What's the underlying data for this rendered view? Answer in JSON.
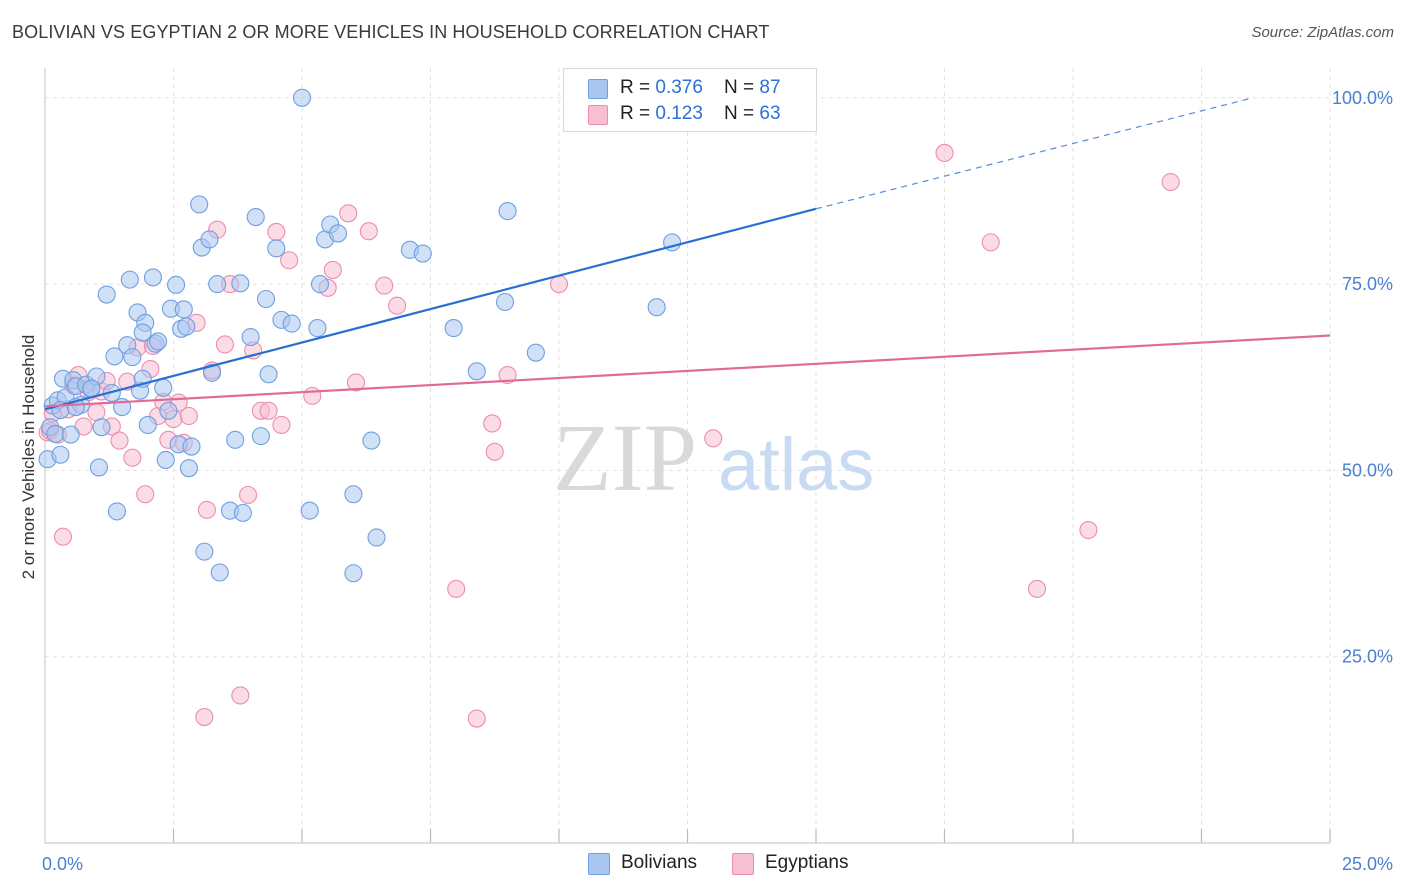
{
  "title": "BOLIVIAN VS EGYPTIAN 2 OR MORE VEHICLES IN HOUSEHOLD CORRELATION CHART",
  "source": "Source: ZipAtlas.com",
  "watermark": {
    "zip": "ZIP",
    "atlas": "atlas"
  },
  "colors": {
    "blue_fill": "#a9c6f0",
    "blue_stroke": "#6f9fe0",
    "blue_line": "#2b6fd1",
    "pink_fill": "#f7bfd2",
    "pink_stroke": "#ec8db0",
    "pink_line": "#e06a98",
    "grid": "#e2e2e2",
    "tick_text": "#4a7fd1"
  },
  "legend": {
    "rows": [
      {
        "r_label": "R = ",
        "r_value": "0.376",
        "n_label": "N = ",
        "n_value": "87"
      },
      {
        "r_label": "R = ",
        "r_value": "0.123",
        "n_label": "N = ",
        "n_value": "63"
      }
    ]
  },
  "bottom_legend": [
    {
      "label": "Bolivians"
    },
    {
      "label": "Egyptians"
    }
  ],
  "chart_data": {
    "type": "scatter",
    "title": "BOLIVIAN VS EGYPTIAN 2 OR MORE VEHICLES IN HOUSEHOLD CORRELATION CHART",
    "xlabel": "",
    "ylabel": "2 or more Vehicles in Household",
    "xlim": [
      0,
      25
    ],
    "ylim": [
      0,
      104
    ],
    "x_tick_labels": [
      "0.0%",
      "25.0%"
    ],
    "y_ticks": [
      {
        "value": 25,
        "label": "25.0%"
      },
      {
        "value": 50,
        "label": "50.0%"
      },
      {
        "value": 75,
        "label": "75.0%"
      },
      {
        "value": 100,
        "label": "100.0%"
      }
    ],
    "series": [
      {
        "name": "Bolivians",
        "R": 0.376,
        "N": 87,
        "trend": {
          "x0": 0,
          "y0": 58.2,
          "x1": 15,
          "y1": 85.1,
          "dash_to_x": 23.5,
          "dash_to_y": 100.0
        },
        "points": [
          [
            0.05,
            51.5
          ],
          [
            0.1,
            55.8
          ],
          [
            0.15,
            58.7
          ],
          [
            0.2,
            54.9
          ],
          [
            0.25,
            59.4
          ],
          [
            0.3,
            52.1
          ],
          [
            0.35,
            62.3
          ],
          [
            0.4,
            59.8
          ],
          [
            0.5,
            54.8
          ],
          [
            0.55,
            62.1
          ],
          [
            0.6,
            61.3
          ],
          [
            0.7,
            58.8
          ],
          [
            0.8,
            61.5
          ],
          [
            0.9,
            60.9
          ],
          [
            1.0,
            62.6
          ],
          [
            1.05,
            50.4
          ],
          [
            1.1,
            55.8
          ],
          [
            1.2,
            73.6
          ],
          [
            1.3,
            60.4
          ],
          [
            1.35,
            65.3
          ],
          [
            1.4,
            44.5
          ],
          [
            1.5,
            58.5
          ],
          [
            1.6,
            66.8
          ],
          [
            1.65,
            75.6
          ],
          [
            1.7,
            65.2
          ],
          [
            1.8,
            71.2
          ],
          [
            1.85,
            60.7
          ],
          [
            1.9,
            62.3
          ],
          [
            1.95,
            69.8
          ],
          [
            2.0,
            56.1
          ],
          [
            2.1,
            75.9
          ],
          [
            2.15,
            67.0
          ],
          [
            2.2,
            67.3
          ],
          [
            2.35,
            51.4
          ],
          [
            2.4,
            58.0
          ],
          [
            2.45,
            71.7
          ],
          [
            2.55,
            74.9
          ],
          [
            2.6,
            53.5
          ],
          [
            2.65,
            69.0
          ],
          [
            2.7,
            71.6
          ],
          [
            2.75,
            69.3
          ],
          [
            2.8,
            50.3
          ],
          [
            2.85,
            53.2
          ],
          [
            3.0,
            85.7
          ],
          [
            3.05,
            79.9
          ],
          [
            3.1,
            39.1
          ],
          [
            3.2,
            81.0
          ],
          [
            3.25,
            63.1
          ],
          [
            3.35,
            75.0
          ],
          [
            3.4,
            36.3
          ],
          [
            3.6,
            44.6
          ],
          [
            3.7,
            54.1
          ],
          [
            3.8,
            75.1
          ],
          [
            3.85,
            44.3
          ],
          [
            4.0,
            67.9
          ],
          [
            4.1,
            84.0
          ],
          [
            4.2,
            54.6
          ],
          [
            4.3,
            73.0
          ],
          [
            4.35,
            62.9
          ],
          [
            4.5,
            79.8
          ],
          [
            4.6,
            70.2
          ],
          [
            4.8,
            69.7
          ],
          [
            5.0,
            100.0
          ],
          [
            5.15,
            44.6
          ],
          [
            5.3,
            69.1
          ],
          [
            5.35,
            75.0
          ],
          [
            5.45,
            81.0
          ],
          [
            5.55,
            83.0
          ],
          [
            5.7,
            81.8
          ],
          [
            6.0,
            36.2
          ],
          [
            6.35,
            54.0
          ],
          [
            6.45,
            41.0
          ],
          [
            7.1,
            79.6
          ],
          [
            7.35,
            79.1
          ],
          [
            7.95,
            69.1
          ],
          [
            8.4,
            63.3
          ],
          [
            8.95,
            72.6
          ],
          [
            9.0,
            84.8
          ],
          [
            9.55,
            65.8
          ],
          [
            11.9,
            71.9
          ],
          [
            12.2,
            80.6
          ],
          [
            0.3,
            58.1
          ],
          [
            0.6,
            58.5
          ],
          [
            0.9,
            61.0
          ],
          [
            1.9,
            68.5
          ],
          [
            2.3,
            61.1
          ],
          [
            6.0,
            46.8
          ]
        ]
      },
      {
        "name": "Egyptians",
        "R": 0.123,
        "N": 63,
        "trend": {
          "x0": 0,
          "y0": 58.6,
          "x1": 25,
          "y1": 68.1
        },
        "points": [
          [
            0.05,
            55.1
          ],
          [
            0.1,
            55.3
          ],
          [
            0.15,
            57.7
          ],
          [
            0.25,
            54.8
          ],
          [
            0.35,
            41.1
          ],
          [
            0.45,
            58.2
          ],
          [
            0.55,
            61.4
          ],
          [
            0.65,
            62.8
          ],
          [
            0.75,
            55.9
          ],
          [
            0.85,
            60.5
          ],
          [
            1.0,
            57.8
          ],
          [
            1.1,
            60.6
          ],
          [
            1.2,
            62.0
          ],
          [
            1.3,
            55.9
          ],
          [
            1.45,
            54.0
          ],
          [
            1.6,
            61.9
          ],
          [
            1.7,
            51.7
          ],
          [
            1.8,
            66.5
          ],
          [
            1.95,
            46.8
          ],
          [
            2.05,
            63.6
          ],
          [
            2.1,
            66.7
          ],
          [
            2.2,
            57.3
          ],
          [
            2.3,
            59.2
          ],
          [
            2.4,
            54.1
          ],
          [
            2.5,
            56.9
          ],
          [
            2.6,
            59.1
          ],
          [
            2.7,
            53.7
          ],
          [
            2.8,
            57.3
          ],
          [
            2.95,
            69.8
          ],
          [
            3.1,
            16.9
          ],
          [
            3.15,
            44.7
          ],
          [
            3.25,
            63.4
          ],
          [
            3.35,
            82.3
          ],
          [
            3.5,
            66.9
          ],
          [
            3.6,
            75.0
          ],
          [
            3.8,
            19.8
          ],
          [
            3.95,
            46.7
          ],
          [
            4.05,
            66.1
          ],
          [
            4.2,
            58.0
          ],
          [
            4.35,
            58.0
          ],
          [
            4.5,
            82.0
          ],
          [
            4.6,
            56.1
          ],
          [
            4.75,
            78.2
          ],
          [
            5.2,
            60.0
          ],
          [
            5.5,
            74.5
          ],
          [
            5.6,
            76.9
          ],
          [
            5.9,
            84.5
          ],
          [
            6.05,
            61.8
          ],
          [
            6.3,
            82.1
          ],
          [
            6.6,
            74.8
          ],
          [
            6.85,
            72.1
          ],
          [
            8.0,
            34.1
          ],
          [
            8.4,
            16.7
          ],
          [
            8.7,
            56.3
          ],
          [
            8.75,
            52.5
          ],
          [
            9.0,
            62.8
          ],
          [
            10.0,
            75.0
          ],
          [
            13.0,
            54.3
          ],
          [
            17.5,
            92.6
          ],
          [
            18.4,
            80.6
          ],
          [
            19.3,
            34.1
          ],
          [
            20.3,
            42.0
          ],
          [
            21.9,
            88.7
          ]
        ]
      }
    ]
  }
}
